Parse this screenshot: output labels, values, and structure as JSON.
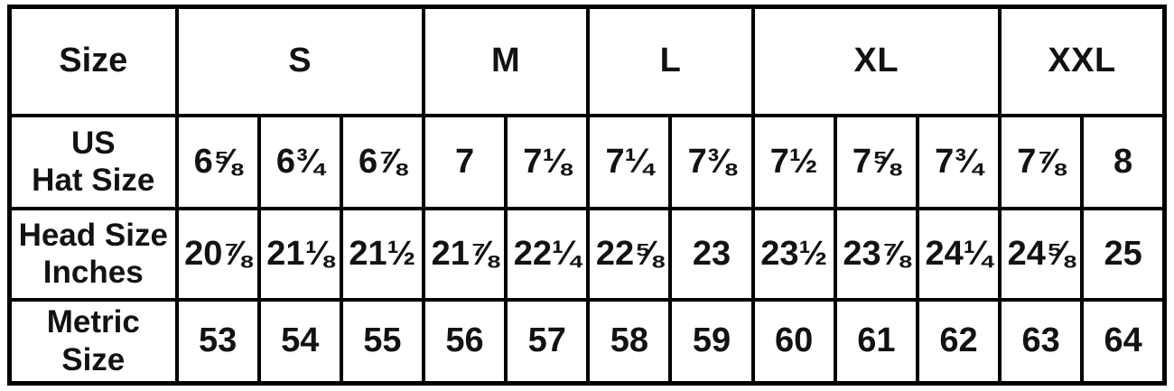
{
  "colors": {
    "border": "#000000",
    "text": "#121212",
    "background": "#ffffff"
  },
  "chart_data": {
    "type": "table",
    "corner_header": "Size",
    "size_groups": [
      {
        "label": "S",
        "span": 3
      },
      {
        "label": "M",
        "span": 2
      },
      {
        "label": "L",
        "span": 2
      },
      {
        "label": "XL",
        "span": 3
      },
      {
        "label": "XXL",
        "span": 2
      }
    ],
    "rows": [
      {
        "label_lines": [
          "US",
          "Hat Size"
        ],
        "values": [
          "6⅝",
          "6¾",
          "6⅞",
          "7",
          "7⅛",
          "7¼",
          "7⅜",
          "7½",
          "7⅝",
          "7¾",
          "7⅞",
          "8"
        ]
      },
      {
        "label_lines": [
          "Head Size",
          "Inches"
        ],
        "values": [
          "20⅞",
          "21⅛",
          "21½",
          "21⅞",
          "22¼",
          "22⅝",
          "23",
          "23½",
          "23⅞",
          "24¼",
          "24⅝",
          "25"
        ]
      },
      {
        "label_lines": [
          "Metric",
          "Size"
        ],
        "values": [
          "53",
          "54",
          "55",
          "56",
          "57",
          "58",
          "59",
          "60",
          "61",
          "62",
          "63",
          "64"
        ]
      }
    ]
  }
}
